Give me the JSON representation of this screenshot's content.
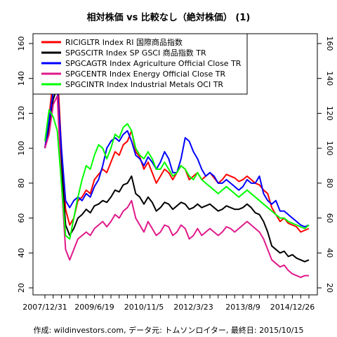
{
  "chart_data": {
    "type": "line",
    "title": "相対株価 vs 比較なし（絶対株価） (1)",
    "caption": "作成: wildinvestors.com, データ元: トムソンロイター, 最終日: 2015/10/15",
    "xlabel": "",
    "ylabel": "",
    "x_tick_labels": [
      "2007/12/31",
      "2009/6/19",
      "2010/11/5",
      "2012/3/23",
      "2013/8/9",
      "2014/12/26"
    ],
    "x_ticks_index": [
      0,
      12,
      24,
      36,
      48,
      60
    ],
    "ylim": [
      20,
      160
    ],
    "y_ticks": [
      20,
      40,
      60,
      80,
      100,
      120,
      140,
      160
    ],
    "grid": false,
    "legend_position": "top-left",
    "colors": {
      "red": "#ff0000",
      "black": "#000000",
      "blue": "#0000ff",
      "magenta": "#e0198a",
      "green": "#00ff00"
    },
    "series": [
      {
        "name": "RICIGLTR Index RI 国際商品指数",
        "color": "#ff0000",
        "values": [
          100,
          118,
          140,
          146,
          100,
          65,
          56,
          60,
          70,
          72,
          76,
          74,
          82,
          85,
          88,
          86,
          92,
          98,
          96,
          102,
          104,
          110,
          98,
          95,
          88,
          92,
          86,
          80,
          84,
          88,
          86,
          82,
          86,
          90,
          88,
          82,
          84,
          86,
          82,
          84,
          86,
          83,
          80,
          82,
          85,
          84,
          83,
          81,
          82,
          84,
          82,
          80,
          79,
          76,
          74,
          66,
          62,
          58,
          60,
          57,
          56,
          55,
          52,
          53,
          54
        ]
      },
      {
        "name": "SPGSCITR Index SP GSCI 商品指数 TR",
        "color": "#000000",
        "values": [
          100,
          112,
          128,
          135,
          90,
          56,
          50,
          54,
          60,
          62,
          65,
          63,
          67,
          68,
          70,
          69,
          72,
          76,
          75,
          79,
          80,
          84,
          74,
          72,
          68,
          72,
          69,
          64,
          66,
          69,
          68,
          65,
          67,
          69,
          68,
          65,
          66,
          68,
          66,
          67,
          68,
          66,
          64,
          65,
          67,
          66,
          65,
          65,
          66,
          68,
          66,
          63,
          62,
          58,
          52,
          44,
          42,
          40,
          41,
          38,
          39,
          37,
          36,
          35,
          36
        ]
      },
      {
        "name": "SPGCAGTR Index Agriculture Official Close TR",
        "color": "#0000ff",
        "values": [
          100,
          116,
          132,
          135,
          100,
          70,
          66,
          70,
          72,
          70,
          74,
          72,
          78,
          82,
          90,
          100,
          104,
          106,
          104,
          108,
          110,
          104,
          96,
          94,
          90,
          95,
          92,
          88,
          92,
          98,
          94,
          86,
          86,
          94,
          106,
          104,
          98,
          94,
          88,
          84,
          86,
          84,
          80,
          80,
          82,
          80,
          78,
          76,
          78,
          82,
          80,
          80,
          84,
          74,
          70,
          68,
          70,
          64,
          64,
          62,
          60,
          58,
          56,
          55,
          56
        ]
      },
      {
        "name": "SPGCENTR Index Energy Official Close TR",
        "color": "#e0198a",
        "values": [
          100,
          108,
          125,
          130,
          80,
          42,
          36,
          42,
          48,
          50,
          52,
          50,
          54,
          56,
          58,
          55,
          58,
          62,
          60,
          64,
          66,
          70,
          60,
          56,
          52,
          58,
          54,
          50,
          52,
          56,
          55,
          50,
          52,
          56,
          54,
          48,
          50,
          54,
          50,
          52,
          54,
          52,
          50,
          52,
          55,
          54,
          52,
          54,
          56,
          58,
          56,
          54,
          52,
          48,
          42,
          36,
          34,
          32,
          33,
          30,
          28,
          27,
          26,
          27,
          27
        ]
      },
      {
        "name": "SPGCINTR Index Industrial Metals OCI TR",
        "color": "#00ff00",
        "values": [
          104,
          122,
          118,
          110,
          80,
          50,
          48,
          60,
          72,
          82,
          90,
          88,
          96,
          102,
          100,
          94,
          100,
          108,
          106,
          112,
          114,
          110,
          100,
          96,
          94,
          98,
          94,
          88,
          88,
          92,
          88,
          84,
          86,
          90,
          88,
          84,
          82,
          86,
          82,
          80,
          78,
          76,
          74,
          76,
          78,
          76,
          74,
          72,
          74,
          76,
          74,
          72,
          70,
          68,
          66,
          64,
          62,
          60,
          60,
          58,
          57,
          56,
          55,
          54,
          56
        ]
      }
    ]
  }
}
